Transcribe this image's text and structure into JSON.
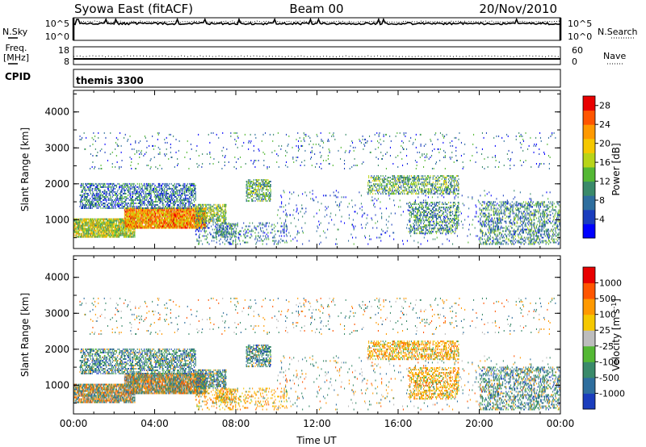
{
  "header": {
    "station": "Syowa East (fitACF)",
    "beam": "Beam 00",
    "date": "20/Nov/2010"
  },
  "top_panel": {
    "left_label": "N.Sky",
    "right_label": "N.Search",
    "left_ticks": [
      "10^5",
      "10^0"
    ],
    "right_ticks": [
      "10^5",
      "10^0"
    ]
  },
  "freq_panel": {
    "left_label_1": "Freq.",
    "left_label_2": "[MHz]",
    "right_label": "Nave",
    "left_ticks": [
      "18",
      "8"
    ],
    "right_ticks": [
      "60",
      "0"
    ]
  },
  "cpid": {
    "label": "CPID",
    "program": "themis 3300"
  },
  "chart_data": [
    {
      "type": "heatmap",
      "quantity": "Power",
      "ylabel": "Slant Range [km]",
      "x_ticks": [
        "00:00",
        "04:00",
        "08:00",
        "12:00",
        "16:00",
        "20:00",
        "00:00"
      ],
      "xlim": [
        0,
        24
      ],
      "y_ticks": [
        "1000",
        "2000",
        "3000",
        "4000"
      ],
      "ylim": [
        200,
        4600
      ],
      "colorbar": {
        "title": "Power [dB]",
        "tick_labels": [
          "4",
          "8",
          "12",
          "16",
          "20",
          "24",
          "28"
        ],
        "range": [
          0,
          30
        ],
        "colors": [
          "#0000ff",
          "#1a3dbd",
          "#2e6e9e",
          "#3a8a6a",
          "#54b834",
          "#b8d418",
          "#f5c800",
          "#ff9900",
          "#ff5500",
          "#e80000"
        ]
      }
    },
    {
      "type": "heatmap",
      "quantity": "Velocity",
      "ylabel": "Slant Range [km]",
      "xlabel": "Time UT",
      "x_ticks": [
        "00:00",
        "04:00",
        "08:00",
        "12:00",
        "16:00",
        "20:00",
        "00:00"
      ],
      "xlim": [
        0,
        24
      ],
      "y_ticks": [
        "1000",
        "2000",
        "3000",
        "4000"
      ],
      "ylim": [
        200,
        4600
      ],
      "colorbar": {
        "title_main": "Velocity",
        "title_unit": "[m s",
        "title_sup": "-1",
        "title_close": "]",
        "tick_labels": [
          "1000",
          "500",
          "100",
          "25",
          "-25",
          "-100",
          "-500",
          "-1000"
        ],
        "colors": [
          "#1a3dbd",
          "#2e6e9e",
          "#3a8a6a",
          "#54b834",
          "#bdbdbd",
          "#f5c800",
          "#ff9900",
          "#ff5500",
          "#e80000"
        ]
      }
    }
  ]
}
